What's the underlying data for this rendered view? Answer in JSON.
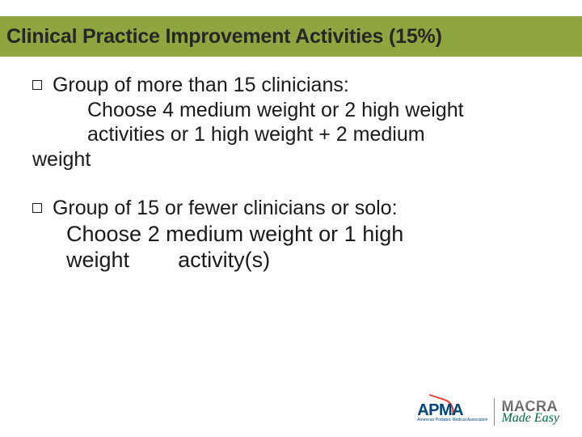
{
  "title": "Clinical Practice Improvement Activities (15%)",
  "block1": {
    "lead": " Group of more than 15 clinicians:",
    "line1": "Choose 4 medium weight or 2 high weight",
    "line2": "activities or 1 high weight + 2 medium",
    "wrap": "weight"
  },
  "block2": {
    "lead": " Group of 15 or fewer clinicians or solo:",
    "line1": "Choose 2 medium weight or 1 high",
    "line2a": "weight",
    "line2b": "activity(s)"
  },
  "logos": {
    "apma": "APMA",
    "apma_sub": "American Podiatric Medical Association",
    "macra": "MACRA",
    "made_easy": "Made Easy"
  },
  "colors": {
    "band": "#8fa640",
    "text": "#1a1a1a",
    "apma": "#00447a",
    "macra_grad_top": "#8c8c8c",
    "macra_grad_bot": "#4d4d4d",
    "made_easy": "#006b3d",
    "swoosh": "#e33a29"
  }
}
